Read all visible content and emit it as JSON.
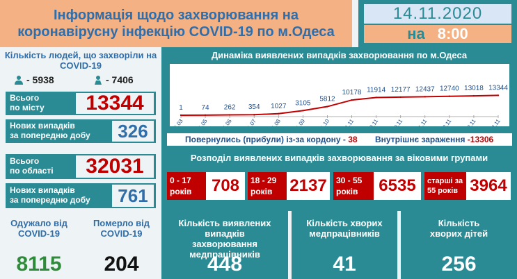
{
  "header": {
    "title_line1": "Інформація щодо захворювання на",
    "title_line2": "коронавірусну інфекцію COVID-19 по м.Одеса",
    "date": "14.11.2020",
    "na": "на",
    "time": "8:00"
  },
  "city": {
    "title": "Кількість людей, що захворіли на COVID-19",
    "male_count": "- 5938",
    "female_count": "- 7406",
    "total_label_1": "Всього",
    "total_label_2": "по місту",
    "total_value": "13344",
    "new_label_1": "Нових випадків",
    "new_label_2": "за попередню добу",
    "new_value": "326"
  },
  "region": {
    "total_label_1": "Всього",
    "total_label_2": "по області",
    "total_value": "32031",
    "new_label_1": "Нових випадків",
    "new_label_2": "за попередню добу",
    "new_value": "761"
  },
  "chart_data": {
    "type": "line",
    "title": "Динаміка виявлених випадків захворювання по м.Одеса",
    "categories": [
      "25.03",
      "01.05",
      "01.06",
      "01.07",
      "01.08",
      "01.09",
      "01.10",
      "01.11",
      "09.11",
      "10.11",
      "11.11",
      "12.11",
      "13.11",
      "14.11"
    ],
    "values": [
      1,
      74,
      262,
      354,
      1027,
      3105,
      5812,
      10178,
      11914,
      12177,
      12437,
      12740,
      13018,
      13344
    ],
    "value_labels": [
      "1",
      "74",
      "262",
      "354",
      "1027",
      "3105",
      "5812",
      "10178",
      "11914",
      "12177",
      "12437",
      "12740",
      "13018",
      "13344"
    ],
    "ylim": [
      0,
      14000
    ],
    "line_color": "#c00000"
  },
  "legend": {
    "returned_label": "Повернулись (прибули) із-за кордону -",
    "returned_value": "38",
    "internal_label": "Внутрішнє зараження",
    "internal_value": "-13306"
  },
  "age": {
    "title": "Розподіл виявлених випадків захворювання за віковими групами",
    "groups": [
      {
        "label_1": "0 - 17",
        "label_2": "років",
        "value": "708"
      },
      {
        "label_1": "18 - 29",
        "label_2": "років",
        "value": "2137"
      },
      {
        "label_1": "30 - 55",
        "label_2": "років",
        "value": "6535"
      },
      {
        "label_1": "старші за",
        "label_2": "55 років",
        "value": "3964"
      }
    ]
  },
  "bottom": {
    "recovered_label": "Одужало від COVID-19",
    "recovered_value": "8115",
    "died_label": "Померло від COVID-19",
    "died_value": "204",
    "med_cases_label": "Кількість виявлених випадків захворювання медпрацівників",
    "med_cases_value": "448",
    "med_sick_label": "Кількість хворих медпрацівників",
    "med_sick_value": "41",
    "children_label": "Кількість хворих дітей",
    "children_value": "256"
  },
  "colors": {
    "teal": "#2b8b95",
    "orange": "#f4b183",
    "red": "#c00000",
    "green": "#2e8b3a",
    "blue": "#2f6eaa"
  }
}
